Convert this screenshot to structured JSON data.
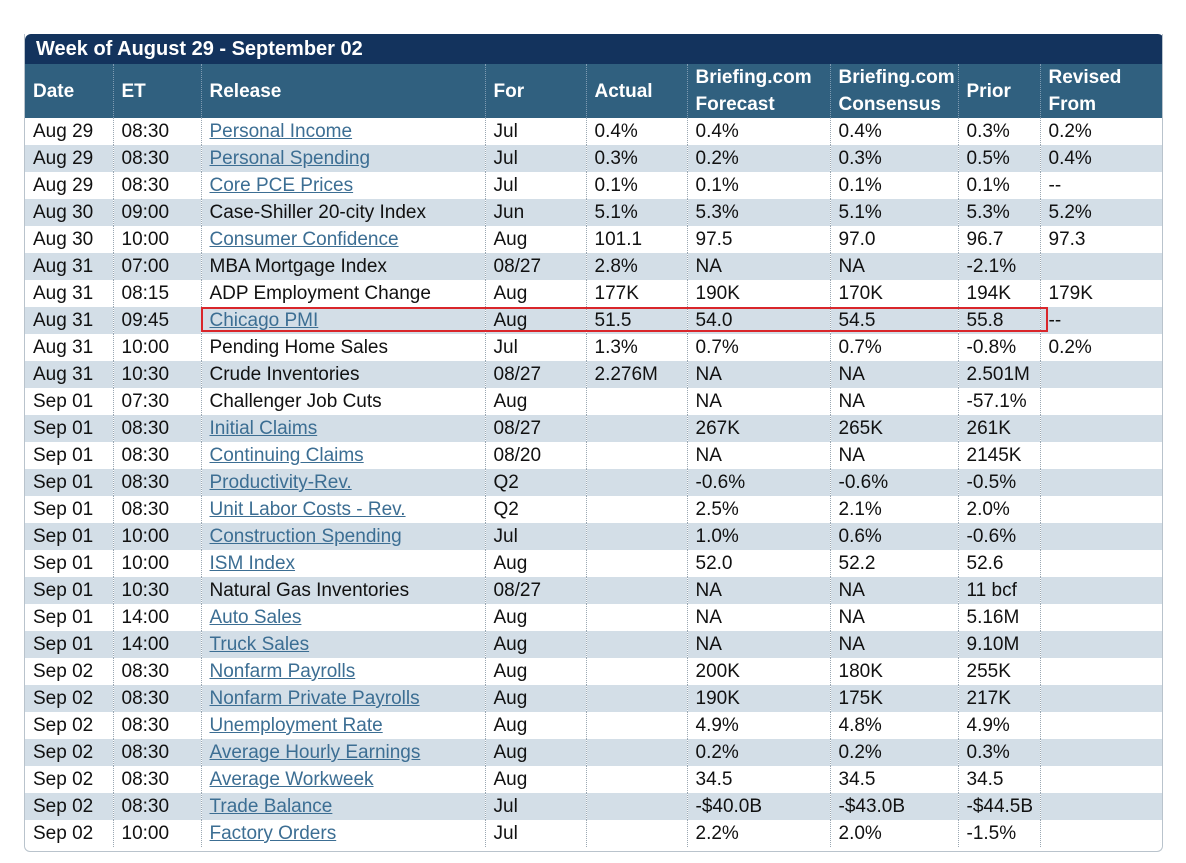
{
  "week_title": "Week of August 29 - September 02",
  "headers": {
    "date": "Date",
    "et": "ET",
    "release": "Release",
    "for": "For",
    "actual": "Actual",
    "forecast_l1": "Briefing.com",
    "forecast_l2": "Forecast",
    "consensus_l1": "Briefing.com",
    "consensus_l2": "Consensus",
    "prior": "Prior",
    "revised_l1": "Revised",
    "revised_l2": "From"
  },
  "rows": [
    {
      "date": "Aug 29",
      "et": "08:30",
      "release": "Personal Income",
      "link": true,
      "for": "Jul",
      "actual": "0.4%",
      "forecast": "0.4%",
      "consensus": "0.4%",
      "prior": "0.3%",
      "revised": "0.2%"
    },
    {
      "date": "Aug 29",
      "et": "08:30",
      "release": "Personal Spending",
      "link": true,
      "for": "Jul",
      "actual": "0.3%",
      "forecast": "0.2%",
      "consensus": "0.3%",
      "prior": "0.5%",
      "revised": "0.4%"
    },
    {
      "date": "Aug 29",
      "et": "08:30",
      "release": "Core PCE Prices",
      "link": true,
      "for": "Jul",
      "actual": "0.1%",
      "forecast": "0.1%",
      "consensus": "0.1%",
      "prior": "0.1%",
      "revised": "--"
    },
    {
      "date": "Aug 30",
      "et": "09:00",
      "release": "Case-Shiller 20-city Index",
      "link": false,
      "for": "Jun",
      "actual": "5.1%",
      "forecast": "5.3%",
      "consensus": "5.1%",
      "prior": "5.3%",
      "revised": "5.2%"
    },
    {
      "date": "Aug 30",
      "et": "10:00",
      "release": "Consumer Confidence",
      "link": true,
      "for": "Aug",
      "actual": "101.1",
      "forecast": "97.5",
      "consensus": "97.0",
      "prior": "96.7",
      "revised": "97.3"
    },
    {
      "date": "Aug 31",
      "et": "07:00",
      "release": "MBA Mortgage Index",
      "link": false,
      "for": "08/27",
      "actual": "2.8%",
      "forecast": "NA",
      "consensus": "NA",
      "prior": "-2.1%",
      "revised": ""
    },
    {
      "date": "Aug 31",
      "et": "08:15",
      "release": "ADP Employment Change",
      "link": false,
      "for": "Aug",
      "actual": "177K",
      "forecast": "190K",
      "consensus": "170K",
      "prior": "194K",
      "revised": "179K"
    },
    {
      "date": "Aug 31",
      "et": "09:45",
      "release": "Chicago PMI",
      "link": true,
      "for": "Aug",
      "actual": "51.5",
      "forecast": "54.0",
      "consensus": "54.5",
      "prior": "55.8",
      "revised": "--"
    },
    {
      "date": "Aug 31",
      "et": "10:00",
      "release": "Pending Home Sales",
      "link": false,
      "for": "Jul",
      "actual": "1.3%",
      "forecast": "0.7%",
      "consensus": "0.7%",
      "prior": "-0.8%",
      "revised": "0.2%"
    },
    {
      "date": "Aug 31",
      "et": "10:30",
      "release": "Crude Inventories",
      "link": false,
      "for": "08/27",
      "actual": "2.276M",
      "forecast": "NA",
      "consensus": "NA",
      "prior": "2.501M",
      "revised": ""
    },
    {
      "date": "Sep 01",
      "et": "07:30",
      "release": "Challenger Job Cuts",
      "link": false,
      "for": "Aug",
      "actual": "",
      "forecast": "NA",
      "consensus": "NA",
      "prior": "-57.1%",
      "revised": ""
    },
    {
      "date": "Sep 01",
      "et": "08:30",
      "release": "Initial Claims",
      "link": true,
      "for": "08/27",
      "actual": "",
      "forecast": "267K",
      "consensus": "265K",
      "prior": "261K",
      "revised": ""
    },
    {
      "date": "Sep 01",
      "et": "08:30",
      "release": "Continuing Claims",
      "link": true,
      "for": "08/20",
      "actual": "",
      "forecast": "NA",
      "consensus": "NA",
      "prior": "2145K",
      "revised": ""
    },
    {
      "date": "Sep 01",
      "et": "08:30",
      "release": "Productivity-Rev.",
      "link": true,
      "for": "Q2",
      "actual": "",
      "forecast": "-0.6%",
      "consensus": "-0.6%",
      "prior": "-0.5%",
      "revised": ""
    },
    {
      "date": "Sep 01",
      "et": "08:30",
      "release": "Unit Labor Costs - Rev.",
      "link": true,
      "for": "Q2",
      "actual": "",
      "forecast": "2.5%",
      "consensus": "2.1%",
      "prior": "2.0%",
      "revised": ""
    },
    {
      "date": "Sep 01",
      "et": "10:00",
      "release": "Construction Spending",
      "link": true,
      "for": "Jul",
      "actual": "",
      "forecast": "1.0%",
      "consensus": "0.6%",
      "prior": "-0.6%",
      "revised": ""
    },
    {
      "date": "Sep 01",
      "et": "10:00",
      "release": "ISM Index",
      "link": true,
      "for": "Aug",
      "actual": "",
      "forecast": "52.0",
      "consensus": "52.2",
      "prior": "52.6",
      "revised": ""
    },
    {
      "date": "Sep 01",
      "et": "10:30",
      "release": "Natural Gas Inventories",
      "link": false,
      "for": "08/27",
      "actual": "",
      "forecast": "NA",
      "consensus": "NA",
      "prior": "11 bcf",
      "revised": ""
    },
    {
      "date": "Sep 01",
      "et": "14:00",
      "release": "Auto Sales",
      "link": true,
      "for": "Aug",
      "actual": "",
      "forecast": "NA",
      "consensus": "NA",
      "prior": "5.16M",
      "revised": ""
    },
    {
      "date": "Sep 01",
      "et": "14:00",
      "release": "Truck Sales",
      "link": true,
      "for": "Aug",
      "actual": "",
      "forecast": "NA",
      "consensus": "NA",
      "prior": "9.10M",
      "revised": ""
    },
    {
      "date": "Sep 02",
      "et": "08:30",
      "release": "Nonfarm Payrolls",
      "link": true,
      "for": "Aug",
      "actual": "",
      "forecast": "200K",
      "consensus": "180K",
      "prior": "255K",
      "revised": ""
    },
    {
      "date": "Sep 02",
      "et": "08:30",
      "release": "Nonfarm Private Payrolls",
      "link": true,
      "for": "Aug",
      "actual": "",
      "forecast": "190K",
      "consensus": "175K",
      "prior": "217K",
      "revised": ""
    },
    {
      "date": "Sep 02",
      "et": "08:30",
      "release": "Unemployment Rate",
      "link": true,
      "for": "Aug",
      "actual": "",
      "forecast": "4.9%",
      "consensus": "4.8%",
      "prior": "4.9%",
      "revised": ""
    },
    {
      "date": "Sep 02",
      "et": "08:30",
      "release": "Average Hourly Earnings",
      "link": true,
      "for": "Aug",
      "actual": "",
      "forecast": "0.2%",
      "consensus": "0.2%",
      "prior": "0.3%",
      "revised": ""
    },
    {
      "date": "Sep 02",
      "et": "08:30",
      "release": "Average Workweek",
      "link": true,
      "for": "Aug",
      "actual": "",
      "forecast": "34.5",
      "consensus": "34.5",
      "prior": "34.5",
      "revised": ""
    },
    {
      "date": "Sep 02",
      "et": "08:30",
      "release": "Trade Balance",
      "link": true,
      "for": "Jul",
      "actual": "",
      "forecast": "-$40.0B",
      "consensus": "-$43.0B",
      "prior": "-$44.5B",
      "revised": ""
    },
    {
      "date": "Sep 02",
      "et": "10:00",
      "release": "Factory Orders",
      "link": true,
      "for": "Jul",
      "actual": "",
      "forecast": "2.2%",
      "consensus": "2.0%",
      "prior": "-1.5%",
      "revised": ""
    }
  ],
  "colors": {
    "title_bar": "#13335d",
    "header_bg": "#30607f",
    "row_alt": "#d3dee7",
    "link": "#3c6e93",
    "highlight": "#d9262b"
  }
}
